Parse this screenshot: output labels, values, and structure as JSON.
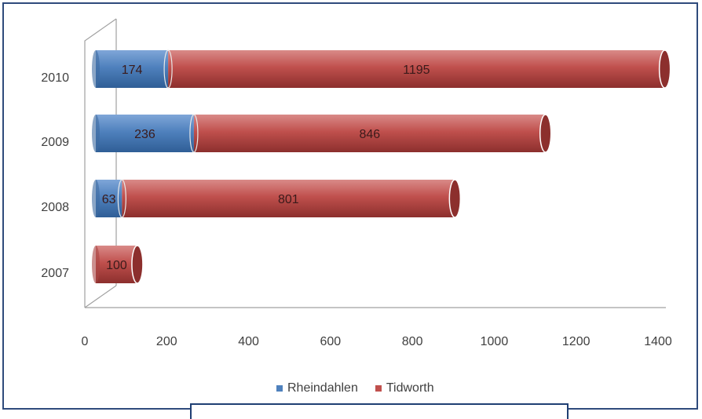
{
  "colors": {
    "rheindahlen": "#4f81bd",
    "tidworth": "#c0504d",
    "frame": "#2f4b7c"
  },
  "chart_data": {
    "type": "bar",
    "orientation": "horizontal",
    "stacked": true,
    "categories": [
      "2010",
      "2009",
      "2008",
      "2007"
    ],
    "series": [
      {
        "name": "Rheindahlen",
        "values": [
          174,
          236,
          63,
          null
        ]
      },
      {
        "name": "Tidworth",
        "values": [
          1195,
          846,
          801,
          100
        ]
      }
    ],
    "data_labels": {
      "Rheindahlen": [
        "174",
        "236",
        "63",
        ""
      ],
      "Tidworth": [
        "1195",
        "846",
        "801",
        "100"
      ]
    },
    "xlim": [
      0,
      1400
    ],
    "xticks": [
      "0",
      "200",
      "400",
      "600",
      "800",
      "1000",
      "1200",
      "1400"
    ],
    "title": "",
    "xlabel": "",
    "ylabel": "",
    "legend": "bottom",
    "grid": false
  },
  "legend": {
    "items": [
      "Rheindahlen",
      "Tidworth"
    ]
  }
}
